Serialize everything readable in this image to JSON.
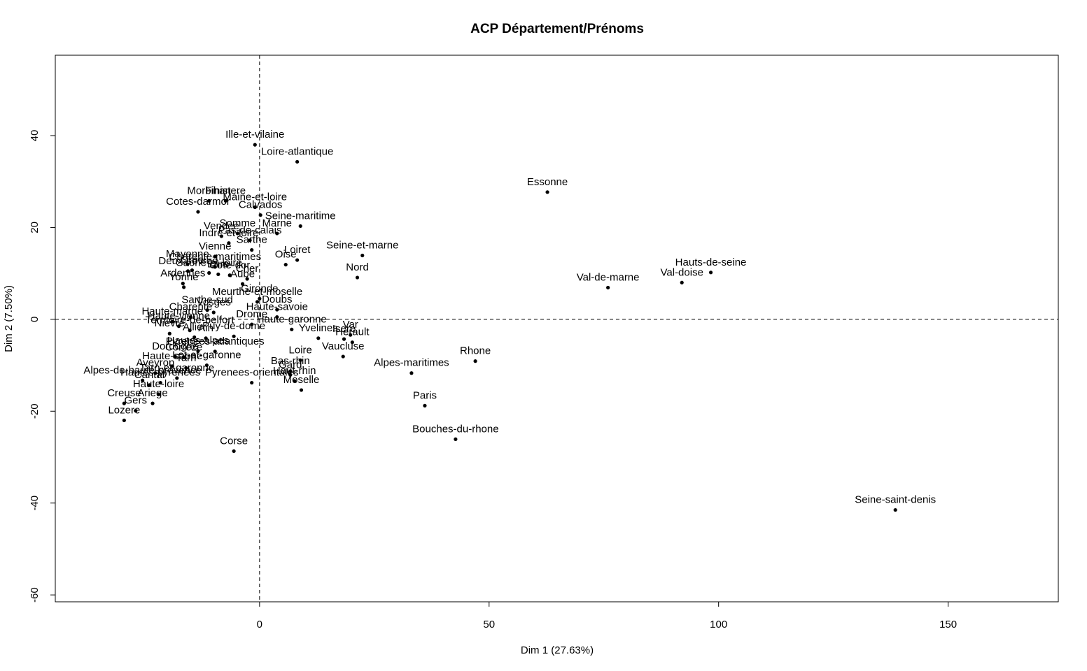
{
  "chart_data": {
    "type": "scatter",
    "title": "ACP Département/Prénoms",
    "xlabel": "Dim 1 (27.63%)",
    "ylabel": "Dim 2 (7.50%)",
    "xlim": [
      -44.5,
      174
    ],
    "ylim": [
      -61.5,
      57.5
    ],
    "xticks": [
      0,
      50,
      100,
      150
    ],
    "yticks": [
      -60,
      -40,
      -20,
      0,
      20,
      40
    ],
    "reference_lines": {
      "x": 0,
      "y": 0,
      "style": "dashed"
    },
    "grid": false,
    "legend": "none",
    "marker_color": "#000000",
    "points": [
      {
        "label": "Ille-et-vilaine",
        "x": -1.0,
        "y": 38.0
      },
      {
        "label": "Loire-atlantique",
        "x": 8.2,
        "y": 34.3
      },
      {
        "label": "Essonne",
        "x": 62.7,
        "y": 27.7
      },
      {
        "label": "Morbihan",
        "x": -11.0,
        "y": 25.8
      },
      {
        "label": "Finistere",
        "x": -7.4,
        "y": 25.8
      },
      {
        "label": "Maine-et-loire",
        "x": -1.0,
        "y": 24.4
      },
      {
        "label": "Cotes-darmor",
        "x": -13.4,
        "y": 23.4
      },
      {
        "label": "Calvados",
        "x": 0.2,
        "y": 22.7
      },
      {
        "label": "Seine-maritime",
        "x": 8.9,
        "y": 20.3
      },
      {
        "label": "Somme",
        "x": -4.8,
        "y": 18.7
      },
      {
        "label": "Marne",
        "x": 3.8,
        "y": 18.7
      },
      {
        "label": "Vendee",
        "x": -8.3,
        "y": 18.1
      },
      {
        "label": "Pas-de-calais",
        "x": -2.1,
        "y": 17.2
      },
      {
        "label": "Indre-et-loire",
        "x": -6.7,
        "y": 16.6
      },
      {
        "label": "Sarthe",
        "x": -1.7,
        "y": 15.1
      },
      {
        "label": "Loiret",
        "x": 8.2,
        "y": 12.9
      },
      {
        "label": "Seine-et-marne",
        "x": 22.4,
        "y": 13.9
      },
      {
        "label": "Oise",
        "x": 5.7,
        "y": 11.9
      },
      {
        "label": "Vienne",
        "x": -9.7,
        "y": 13.7
      },
      {
        "label": "Mayenne",
        "x": -15.7,
        "y": 12.0
      },
      {
        "label": "Charente-maritimes",
        "x": -9.7,
        "y": 11.4
      },
      {
        "label": "Orne",
        "x": -14.7,
        "y": 10.7
      },
      {
        "label": "Deux-sevres",
        "x": -15.6,
        "y": 10.5
      },
      {
        "label": "Eure",
        "x": -9.0,
        "y": 9.8
      },
      {
        "label": "Cote-dor",
        "x": -6.5,
        "y": 9.6
      },
      {
        "label": "Saone-et-loire",
        "x": -11.0,
        "y": 10.1
      },
      {
        "label": "Nord",
        "x": 21.3,
        "y": 9.1
      },
      {
        "label": "Cher",
        "x": -2.7,
        "y": 8.8
      },
      {
        "label": "Aube",
        "x": -3.7,
        "y": 7.7
      },
      {
        "label": "Ardennes",
        "x": -16.7,
        "y": 7.8
      },
      {
        "label": "Yonne",
        "x": -16.5,
        "y": 7.0
      },
      {
        "label": "Hauts-de-seine",
        "x": 98.3,
        "y": 10.2
      },
      {
        "label": "Val-doise",
        "x": 92.0,
        "y": 8.0
      },
      {
        "label": "Val-de-marne",
        "x": 75.9,
        "y": 6.9
      },
      {
        "label": "Gironde",
        "x": 0.0,
        "y": 4.5
      },
      {
        "label": "Meurthe-et-moselle",
        "x": -0.5,
        "y": 3.8
      },
      {
        "label": "Doubs",
        "x": 3.8,
        "y": 2.1
      },
      {
        "label": "Haute-savoie",
        "x": 3.8,
        "y": 0.5
      },
      {
        "label": "Vosges",
        "x": -10.0,
        "y": 1.5
      },
      {
        "label": "Sarthe-sud",
        "x": -11.4,
        "y": 2.0
      },
      {
        "label": "Charente",
        "x": -15.0,
        "y": 0.5
      },
      {
        "label": "Haute-marne",
        "x": -19.0,
        "y": -0.5
      },
      {
        "label": "Nievre",
        "x": -19.6,
        "y": -3.1
      },
      {
        "label": "Haute-vienne",
        "x": -17.6,
        "y": -1.5
      },
      {
        "label": "Drome",
        "x": -1.7,
        "y": -1.1
      },
      {
        "label": "Puy-de-dome",
        "x": -5.6,
        "y": -3.7
      },
      {
        "label": "Haute-garonne",
        "x": 7.0,
        "y": -2.2
      },
      {
        "label": "Yvelines",
        "x": 12.8,
        "y": -4.1
      },
      {
        "label": "Isere",
        "x": 18.4,
        "y": -4.3
      },
      {
        "label": "Var",
        "x": 19.8,
        "y": -3.4
      },
      {
        "label": "Herault",
        "x": 20.2,
        "y": -5.0
      },
      {
        "label": "Territoire-de-belfort",
        "x": -15.2,
        "y": -2.4
      },
      {
        "label": "Allier",
        "x": -14.2,
        "y": -3.9
      },
      {
        "label": "Ain",
        "x": -11.7,
        "y": -4.1
      },
      {
        "label": "Vaucluse",
        "x": 18.2,
        "y": -8.1
      },
      {
        "label": "Loire",
        "x": 8.9,
        "y": -8.9
      },
      {
        "label": "Hautes-alpes",
        "x": -13.4,
        "y": -6.9
      },
      {
        "label": "Dordogne",
        "x": -18.4,
        "y": -8.1
      },
      {
        "label": "Correze",
        "x": -16.5,
        "y": -8.3
      },
      {
        "label": "Pyrenees-atlantiques",
        "x": -9.7,
        "y": -7.0
      },
      {
        "label": "Rhone",
        "x": 47.0,
        "y": -9.1
      },
      {
        "label": "Alpes-maritimes",
        "x": 33.1,
        "y": -11.7
      },
      {
        "label": "Haute-saone",
        "x": -19.0,
        "y": -10.2
      },
      {
        "label": "Tarn",
        "x": -16.0,
        "y": -10.6
      },
      {
        "label": "Lot-et-garonne",
        "x": -11.5,
        "y": -10.0
      },
      {
        "label": "Bas-rhin",
        "x": 6.7,
        "y": -11.3
      },
      {
        "label": "Gard",
        "x": 6.7,
        "y": -12.1
      },
      {
        "label": "Haut-rhin",
        "x": 7.6,
        "y": -13.4
      },
      {
        "label": "Moselle",
        "x": 9.1,
        "y": -15.4
      },
      {
        "label": "Aveyron",
        "x": -22.7,
        "y": -11.7
      },
      {
        "label": "Tarn-et-garonne",
        "x": -18.0,
        "y": -12.8
      },
      {
        "label": "Alpes-de-haute-provence",
        "x": -25.5,
        "y": -13.3
      },
      {
        "label": "Hautes-pyrenees",
        "x": -21.6,
        "y": -13.8
      },
      {
        "label": "Pyrenees-orientales",
        "x": -1.7,
        "y": -13.8
      },
      {
        "label": "Cantal",
        "x": -24.0,
        "y": -14.3
      },
      {
        "label": "Haute-loire",
        "x": -22.0,
        "y": -16.3
      },
      {
        "label": "Creuse",
        "x": -29.5,
        "y": -18.3
      },
      {
        "label": "Ariege",
        "x": -23.3,
        "y": -18.3
      },
      {
        "label": "Gers",
        "x": -27.0,
        "y": -19.9
      },
      {
        "label": "Lozere",
        "x": -29.5,
        "y": -22.0
      },
      {
        "label": "Paris",
        "x": 36.0,
        "y": -18.8
      },
      {
        "label": "Bouches-du-rhone",
        "x": 42.7,
        "y": -26.1
      },
      {
        "label": "Corse",
        "x": -5.6,
        "y": -28.7
      },
      {
        "label": "Seine-saint-denis",
        "x": 138.5,
        "y": -41.5
      }
    ]
  }
}
